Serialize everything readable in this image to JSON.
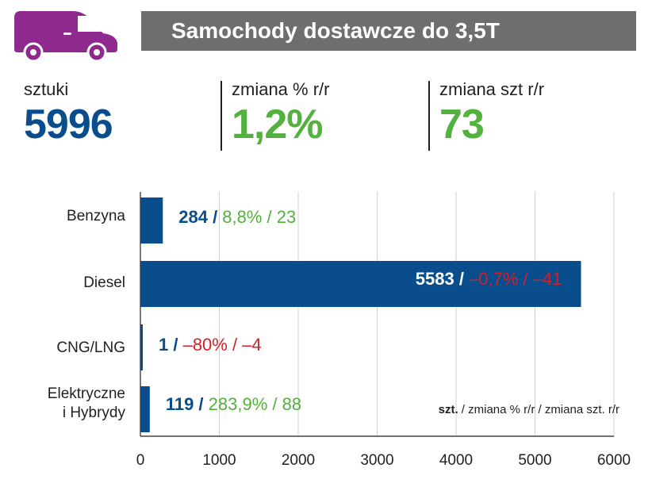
{
  "header": {
    "title": "Samochody dostawcze do 3,5T",
    "icon": "van-icon",
    "icon_color": "#8e2a8e",
    "bar_color": "#6d6e70"
  },
  "kpis": [
    {
      "label": "sztuki",
      "value": "5996"
    },
    {
      "label": "zmiana % r/r",
      "value": "1,2%"
    },
    {
      "label": "zmiana szt r/r",
      "value": "73"
    }
  ],
  "colors": {
    "blue": "#0a4d8c",
    "green": "#53b13d",
    "red": "#d31f2a",
    "grid": "#d0d0d0"
  },
  "chart_data": {
    "type": "bar",
    "orientation": "horizontal",
    "categories": [
      [
        "Benzyna"
      ],
      [
        "Diesel"
      ],
      [
        "CNG/LNG"
      ],
      [
        "Elektryczne",
        "i Hybrydy"
      ]
    ],
    "values": [
      284,
      5583,
      1,
      119
    ],
    "annotations": [
      {
        "count": "284 /",
        "change": "8,8% / 23",
        "change_color": "green"
      },
      {
        "count": "5583 /",
        "change": "–0,7% / –41",
        "change_color": "red"
      },
      {
        "count": "1 /",
        "change": "–80% / –4",
        "change_color": "red"
      },
      {
        "count": "119 /",
        "change": "283,9% / 88",
        "change_color": "green"
      }
    ],
    "xlim": [
      0,
      6000
    ],
    "x_ticks": [
      0,
      1000,
      2000,
      3000,
      4000,
      5000,
      6000
    ],
    "grid": true,
    "legend": {
      "bold": "szt.",
      "rest": " / zmiana % r/r / zmiana szt. r/r",
      "placement": "bottom-right"
    }
  }
}
